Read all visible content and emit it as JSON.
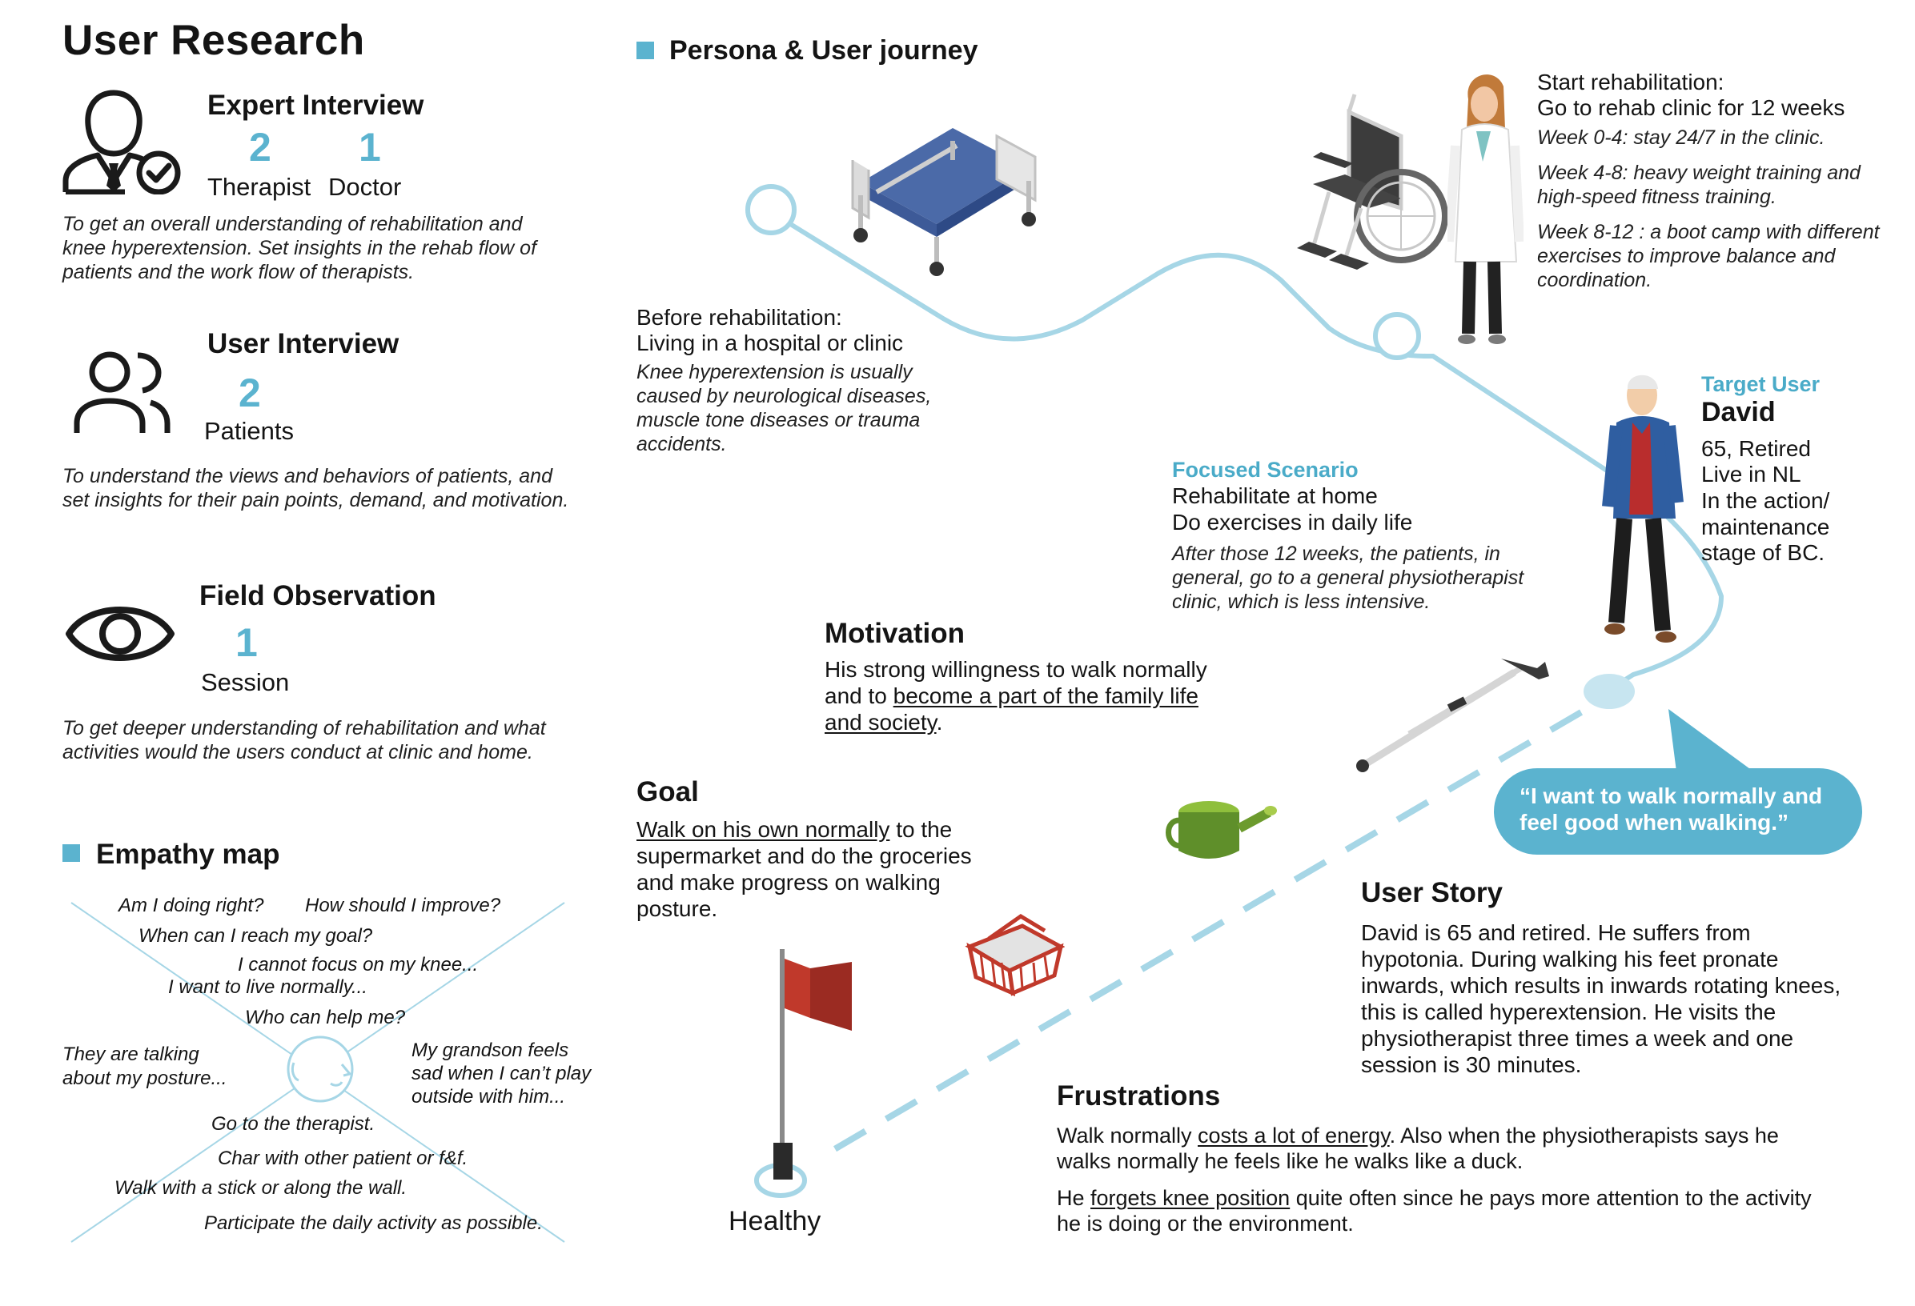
{
  "title": "User Research",
  "expert": {
    "heading": "Expert Interview",
    "therapist_count": "2",
    "doctor_count": "1",
    "therapist_label": "Therapist",
    "doctor_label": "Doctor",
    "desc": "To get an overall understanding of rehabilitation and knee hyperextension. Set insights in the rehab flow of patients and the work flow of therapists."
  },
  "user_interview": {
    "heading": "User Interview",
    "count": "2",
    "label": "Patients",
    "desc": "To understand the views and behaviors of patients, and set insights for their pain points, demand, and motivation."
  },
  "field": {
    "heading": "Field Observation",
    "count": "1",
    "label": "Session",
    "desc": "To get deeper understanding of rehabilitation and what activities would the users conduct at clinic and home."
  },
  "empathy": {
    "heading": "Empathy map",
    "thoughts": [
      "Am I doing right?",
      "How should I improve?",
      "When can I reach my goal?",
      "I cannot focus on my knee...",
      "I want to live normally...",
      "Who can help me?"
    ],
    "left": "They are talking\nabout my posture...",
    "right": "My grandson feels\nsad when I can’t play\noutside with him...",
    "actions": [
      "Go to the therapist.",
      "Char with other patient or f&f.",
      "Walk with a stick or along the wall.",
      "Participate the daily activity as possible."
    ]
  },
  "journey": {
    "heading": "Persona & User journey",
    "before": {
      "title1": "Before rehabilitation:",
      "title2": "Living in a hospital or clinic",
      "desc": "Knee hyperextension is usually caused by neurological diseases, muscle tone diseases or trauma accidents."
    },
    "start": {
      "title1": "Start rehabilitation:",
      "title2": "Go to rehab clinic for 12 weeks",
      "w1": "Week 0-4: stay 24/7 in the clinic.",
      "w2": "Week 4-8: heavy weight training and high-speed fitness training.",
      "w3": "Week 8-12 : a boot camp with different exercises to improve balance and coordination."
    },
    "target": {
      "label": "Target User",
      "name": "David",
      "l1": "65, Retired",
      "l2": "Live in NL",
      "l3": "In the action/",
      "l4": "maintenance",
      "l5": "stage of BC."
    },
    "scenario": {
      "label": "Focused Scenario",
      "t1": "Rehabilitate at home",
      "t2": "Do exercises in daily life",
      "desc": "After those 12 weeks, the patients, in general, go to a general physiotherapist clinic, which is less intensive."
    },
    "motivation": {
      "heading": "Motivation",
      "p1": "His strong willingness to walk normally and to ",
      "p2": "become a part of the family life and society",
      "p3": "."
    },
    "goal": {
      "heading": "Goal",
      "u": "Walk on his own normally",
      "rest": " to the supermarket and do the groceries and make progress on walking posture."
    },
    "quote": "“I want to walk normally and feel good when walking.”",
    "story": {
      "heading": "User Story",
      "text": "David is 65 and retired. He suffers from hypotonia. During walking his feet pronate inwards, which results in inwards rotating knees, this is called hyperextension. He visits the physiotherapist three times a week and one session is 30 minutes."
    },
    "frustrations": {
      "heading": "Frustrations",
      "a1": "Walk normally  ",
      "a2": "costs a lot of energy",
      "a3": ". Also when the physiotherapists says he walks normally he feels like he walks like a duck.",
      "b1": "He ",
      "b2": "forgets knee position",
      "b3": " quite often since he pays more attention to the activity he is doing or the environment."
    },
    "healthy": "Healthy"
  },
  "colors": {
    "accent": "#5bb3cf",
    "line": "#a6d6e6",
    "text": "#141414"
  }
}
